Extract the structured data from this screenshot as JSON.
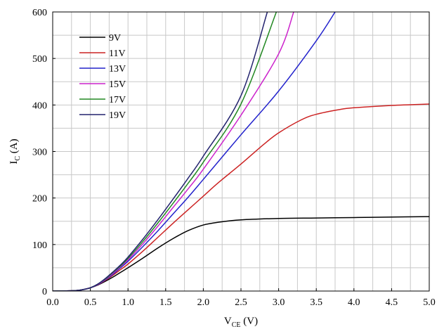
{
  "chart_data": {
    "type": "line",
    "xlabel": {
      "main": "V",
      "sub": "CE",
      "unit": " (V)"
    },
    "ylabel": {
      "main": "I",
      "sub": "C",
      "unit": " (A)"
    },
    "xlim": [
      0,
      5
    ],
    "ylim": [
      0,
      600
    ],
    "x_ticks": [
      "0.0",
      "0.5",
      "1.0",
      "1.5",
      "2.0",
      "2.5",
      "3.0",
      "3.5",
      "4.0",
      "4.5",
      "5.0"
    ],
    "y_ticks": [
      "0",
      "100",
      "200",
      "300",
      "400",
      "500",
      "600"
    ],
    "grid": true,
    "legend_position": "top-left",
    "series": [
      {
        "name": "9V",
        "color": "#000000",
        "x": [
          0,
          0.3,
          0.4,
          0.5,
          0.6,
          0.7,
          0.8,
          0.9,
          1.0,
          1.2,
          1.4,
          1.6,
          1.8,
          2.0,
          2.2,
          2.5,
          3.0,
          3.5,
          4.0,
          4.5,
          5.0
        ],
        "y": [
          0,
          1,
          3,
          7,
          13,
          21,
          30,
          40,
          50,
          71,
          93,
          113,
          130,
          142,
          148,
          153,
          156,
          157,
          158,
          159,
          160
        ]
      },
      {
        "name": "11V",
        "color": "#cc2222",
        "x": [
          0,
          0.3,
          0.4,
          0.5,
          0.6,
          0.7,
          0.8,
          0.9,
          1.0,
          1.2,
          1.4,
          1.6,
          1.8,
          2.0,
          2.2,
          2.5,
          2.8,
          3.0,
          3.3,
          3.5,
          3.8,
          4.0,
          4.5,
          5.0
        ],
        "y": [
          0,
          1,
          3,
          7,
          14,
          23,
          34,
          46,
          58,
          86,
          116,
          146,
          175,
          204,
          233,
          273,
          315,
          340,
          368,
          380,
          390,
          394,
          399,
          402
        ]
      },
      {
        "name": "13V",
        "color": "#2222cc",
        "x": [
          0,
          0.3,
          0.4,
          0.5,
          0.6,
          0.7,
          0.8,
          0.9,
          1.0,
          1.2,
          1.4,
          1.6,
          1.8,
          2.0,
          2.5,
          3.0,
          3.5,
          3.75
        ],
        "y": [
          0,
          1,
          3,
          7,
          14,
          24,
          36,
          50,
          64,
          96,
          130,
          166,
          202,
          240,
          336,
          430,
          538,
          600
        ]
      },
      {
        "name": "15V",
        "color": "#cc22cc",
        "x": [
          0,
          0.3,
          0.4,
          0.5,
          0.6,
          0.7,
          0.8,
          0.9,
          1.0,
          1.2,
          1.4,
          1.6,
          1.8,
          2.0,
          2.5,
          3.0,
          3.2
        ],
        "y": [
          0,
          1,
          3,
          7,
          14,
          25,
          38,
          52,
          67,
          102,
          140,
          180,
          220,
          262,
          378,
          510,
          600
        ]
      },
      {
        "name": "17V",
        "color": "#228822",
        "x": [
          0,
          0.3,
          0.4,
          0.5,
          0.6,
          0.7,
          0.8,
          0.9,
          1.0,
          1.2,
          1.4,
          1.6,
          1.8,
          2.0,
          2.5,
          2.97
        ],
        "y": [
          0,
          1,
          3,
          7,
          15,
          26,
          40,
          54,
          70,
          107,
          147,
          189,
          232,
          277,
          402,
          600
        ]
      },
      {
        "name": "19V",
        "color": "#22226e",
        "x": [
          0,
          0.3,
          0.4,
          0.5,
          0.6,
          0.7,
          0.8,
          0.9,
          1.0,
          1.2,
          1.4,
          1.6,
          1.8,
          2.0,
          2.5,
          2.85
        ],
        "y": [
          0,
          1,
          3,
          7,
          15,
          27,
          41,
          56,
          73,
          112,
          154,
          198,
          243,
          290,
          420,
          600
        ]
      }
    ]
  }
}
